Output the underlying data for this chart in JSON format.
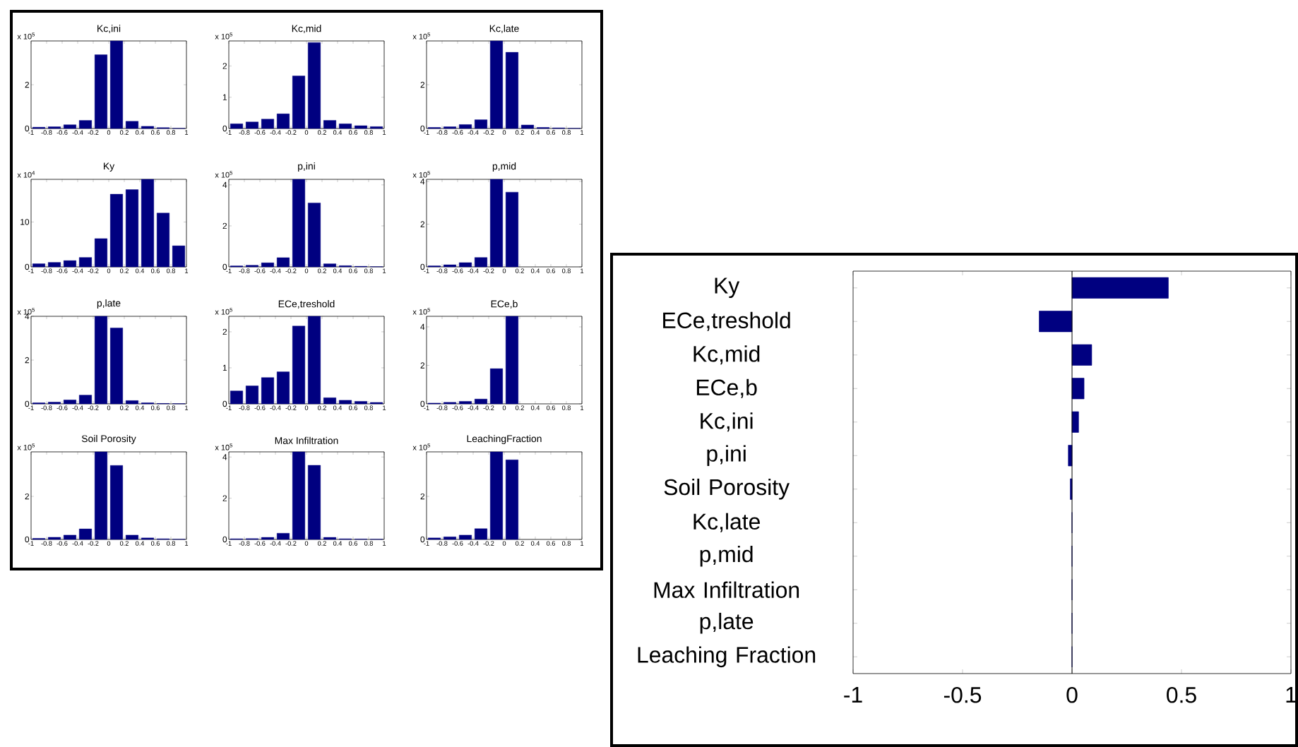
{
  "chart_data": [
    {
      "type": "histogram",
      "title": "Kc,ini",
      "annotations": [
        "x 10$^{5}$"
      ],
      "bins": [
        -1,
        -0.8,
        -0.6,
        -0.4,
        -0.2,
        0,
        0.2,
        0.4,
        0.6,
        0.8,
        1
      ],
      "values": [
        0.06,
        0.08,
        0.17,
        0.37,
        3.37,
        4.0,
        0.33,
        0.1,
        0.04,
        0.01
      ],
      "color": "#000080",
      "xlim": [
        -1,
        1
      ],
      "xticks": [
        -1,
        -0.8,
        -0.6,
        -0.4,
        -0.2,
        0,
        0.2,
        0.4,
        0.6,
        0.8,
        1
      ],
      "ylim": [
        0,
        4
      ],
      "yticks": [
        0,
        2
      ]
    },
    {
      "type": "histogram",
      "title": "Kc,mid",
      "annotations": [
        "x 10$^{5}$"
      ],
      "bins": [
        -1,
        -0.8,
        -0.6,
        -0.4,
        -0.2,
        0,
        0.2,
        0.4,
        0.6,
        0.8,
        1
      ],
      "values": [
        0.15,
        0.21,
        0.3,
        0.47,
        1.68,
        2.75,
        0.26,
        0.15,
        0.09,
        0.06
      ],
      "color": "#000080",
      "xlim": [
        -1,
        1
      ],
      "xticks": [
        -1,
        -0.8,
        -0.6,
        -0.4,
        -0.2,
        0,
        0.2,
        0.4,
        0.6,
        0.8,
        1
      ],
      "ylim": [
        0,
        2.8
      ],
      "yticks": [
        0,
        1,
        2
      ]
    },
    {
      "type": "histogram",
      "title": "Kc,late",
      "annotations": [
        "x 10$^{5}$"
      ],
      "bins": [
        -1,
        -0.8,
        -0.6,
        -0.4,
        -0.2,
        0,
        0.2,
        0.4,
        0.6,
        0.8,
        1
      ],
      "values": [
        0.05,
        0.08,
        0.18,
        0.4,
        4.0,
        3.48,
        0.16,
        0.05,
        0.03,
        0.01
      ],
      "color": "#000080",
      "xlim": [
        -1,
        1
      ],
      "xticks": [
        -1,
        -0.8,
        -0.6,
        -0.4,
        -0.2,
        0,
        0.2,
        0.4,
        0.6,
        0.8,
        1
      ],
      "ylim": [
        0,
        4
      ],
      "yticks": [
        0,
        2
      ]
    },
    {
      "type": "histogram",
      "title": "Ky",
      "annotations": [
        "x 10$^{4}$"
      ],
      "bins": [
        -1,
        -0.8,
        -0.6,
        -0.4,
        -0.2,
        0,
        0.2,
        0.4,
        0.6,
        0.8,
        1
      ],
      "values": [
        0.7,
        1.0,
        1.4,
        2.1,
        6.3,
        16.2,
        17.2,
        19.5,
        12,
        4.7
      ],
      "color": "#000080",
      "xlim": [
        -1,
        1
      ],
      "xticks": [
        -1,
        -0.8,
        -0.6,
        -0.4,
        -0.2,
        0,
        0.2,
        0.4,
        0.6,
        0.8,
        1
      ],
      "ylim": [
        0,
        19.5
      ],
      "yticks": [
        0,
        10
      ]
    },
    {
      "type": "histogram",
      "title": "p,ini",
      "annotations": [
        "x 10$^{5}$"
      ],
      "bins": [
        -1,
        -0.8,
        -0.6,
        -0.4,
        -0.2,
        0,
        0.2,
        0.4,
        0.6,
        0.8,
        1
      ],
      "values": [
        0.05,
        0.08,
        0.2,
        0.45,
        4.27,
        3.12,
        0.15,
        0.06,
        0.03,
        0.01
      ],
      "color": "#000080",
      "xlim": [
        -1,
        1
      ],
      "xticks": [
        -1,
        -0.8,
        -0.6,
        -0.4,
        -0.2,
        0,
        0.2,
        0.4,
        0.6,
        0.8,
        1
      ],
      "ylim": [
        0,
        4.27
      ],
      "yticks": [
        0,
        2,
        4
      ]
    },
    {
      "type": "histogram",
      "title": "p,mid",
      "annotations": [
        "x 10$^{5}$"
      ],
      "bins": [
        -1,
        -0.8,
        -0.6,
        -0.4,
        -0.2,
        0,
        0.2,
        0.4,
        0.6,
        0.8,
        1
      ],
      "values": [
        0.05,
        0.1,
        0.2,
        0.44,
        4.1,
        3.5,
        null,
        null,
        null,
        null
      ],
      "color": "#000080",
      "xlim": [
        -1,
        1
      ],
      "xticks": [
        -1,
        -0.8,
        -0.6,
        -0.4,
        -0.2,
        0,
        0.2,
        0.4,
        0.6,
        0.8,
        1
      ],
      "ylim": [
        0,
        4.1
      ],
      "yticks": [
        0,
        2,
        4
      ]
    },
    {
      "type": "histogram",
      "title": "p,late",
      "annotations": [
        "x 10$^{5}$"
      ],
      "bins": [
        -1,
        -0.8,
        -0.6,
        -0.4,
        -0.2,
        0,
        0.2,
        0.4,
        0.6,
        0.8,
        1
      ],
      "values": [
        0.05,
        0.08,
        0.18,
        0.4,
        4.0,
        3.47,
        0.15,
        0.05,
        0.02,
        0.01
      ],
      "color": "#000080",
      "xlim": [
        -1,
        1
      ],
      "xticks": [
        -1,
        -0.8,
        -0.6,
        -0.4,
        -0.2,
        0,
        0.2,
        0.4,
        0.6,
        0.8,
        1
      ],
      "ylim": [
        0,
        4
      ],
      "yticks": [
        0,
        2,
        4
      ]
    },
    {
      "type": "histogram",
      "title": "ECe,treshold",
      "annotations": [
        "x 10$^{5}$"
      ],
      "bins": [
        -1,
        -0.8,
        -0.6,
        -0.4,
        -0.2,
        0,
        0.2,
        0.4,
        0.6,
        0.8,
        1
      ],
      "values": [
        0.36,
        0.5,
        0.73,
        0.89,
        2.16,
        2.43,
        0.17,
        0.1,
        0.07,
        0.04
      ],
      "color": "#000080",
      "xlim": [
        -1,
        1
      ],
      "xticks": [
        -1,
        -0.8,
        -0.6,
        -0.4,
        -0.2,
        0,
        0.2,
        0.4,
        0.6,
        0.8,
        1
      ],
      "ylim": [
        0,
        2.43
      ],
      "yticks": [
        0,
        1,
        2
      ]
    },
    {
      "type": "histogram",
      "title": "ECe,b",
      "annotations": [
        "x 10$^{5}$"
      ],
      "bins": [
        -1,
        -0.8,
        -0.6,
        -0.4,
        -0.2,
        0,
        0.2,
        0.4,
        0.6,
        0.8,
        1
      ],
      "values": [
        0.04,
        0.08,
        0.13,
        0.25,
        1.83,
        4.55,
        null,
        null,
        null,
        null
      ],
      "color": "#000080",
      "xlim": [
        -1,
        1
      ],
      "xticks": [
        -1,
        -0.8,
        -0.6,
        -0.4,
        -0.2,
        0,
        0.2,
        0.4,
        0.6,
        0.8,
        1
      ],
      "ylim": [
        0,
        4.55
      ],
      "yticks": [
        0,
        2,
        4
      ]
    },
    {
      "type": "histogram",
      "title": "Soil Porosity",
      "annotations": [
        "x 10$^{5}$"
      ],
      "bins": [
        -1,
        -0.8,
        -0.6,
        -0.4,
        -0.2,
        0,
        0.2,
        0.4,
        0.6,
        0.8,
        1
      ],
      "values": [
        0.05,
        0.1,
        0.2,
        0.49,
        4.07,
        3.44,
        0.2,
        0.07,
        0.03,
        0.01
      ],
      "color": "#000080",
      "xlim": [
        -1,
        1
      ],
      "xticks": [
        -1,
        -0.8,
        -0.6,
        -0.4,
        -0.2,
        0,
        0.2,
        0.4,
        0.6,
        0.8,
        1
      ],
      "ylim": [
        0,
        4.07
      ],
      "yticks": [
        0,
        2
      ]
    },
    {
      "type": "histogram",
      "title": "Max Infiltration",
      "annotations": [
        "x 10$^{5}$"
      ],
      "bins": [
        -1,
        -0.8,
        -0.6,
        -0.4,
        -0.2,
        0,
        0.2,
        0.4,
        0.6,
        0.8,
        1
      ],
      "values": [
        0.03,
        0.04,
        0.1,
        0.3,
        4.25,
        3.6,
        0.1,
        0.03,
        0.02,
        0.01
      ],
      "color": "#000080",
      "xlim": [
        -1,
        1
      ],
      "xticks": [
        -1,
        -0.8,
        -0.6,
        -0.4,
        -0.2,
        0,
        0.2,
        0.4,
        0.6,
        0.8,
        1
      ],
      "ylim": [
        0,
        4.25
      ],
      "yticks": [
        0,
        2,
        4
      ]
    },
    {
      "type": "histogram",
      "title": "LeachingFraction",
      "annotations": [
        "x 10$^{5}$"
      ],
      "bins": [
        -1,
        -0.8,
        -0.6,
        -0.4,
        -0.2,
        0,
        0.2,
        0.4,
        0.6,
        0.8,
        1
      ],
      "values": [
        0.07,
        0.12,
        0.2,
        0.5,
        4.07,
        3.7,
        null,
        null,
        null,
        null
      ],
      "color": "#000080",
      "xlim": [
        -1,
        1
      ],
      "xticks": [
        -1,
        -0.8,
        -0.6,
        -0.4,
        -0.2,
        0,
        0.2,
        0.4,
        0.6,
        0.8,
        1
      ],
      "ylim": [
        0,
        4.07
      ],
      "yticks": [
        0,
        2
      ]
    },
    {
      "type": "bar",
      "orientation": "horizontal",
      "categories": [
        "Ky",
        "ECe,treshold",
        "Kc,mid",
        "ECe,b",
        "Kc,ini",
        "p,ini",
        "Soil Porosity",
        "Kc,late",
        "p,mid",
        "Max Infiltration",
        "p,late",
        "Leaching Fraction"
      ],
      "values": [
        0.44,
        -0.15,
        0.09,
        0.055,
        0.03,
        -0.017,
        -0.008,
        0,
        0,
        0,
        0,
        0
      ],
      "color": "#000080",
      "xlim": [
        -1,
        1
      ],
      "xticks": [
        -1,
        -0.5,
        0,
        0.5,
        1
      ],
      "ref_lines": [
        {
          "axis": "x",
          "value": 0
        }
      ]
    }
  ]
}
